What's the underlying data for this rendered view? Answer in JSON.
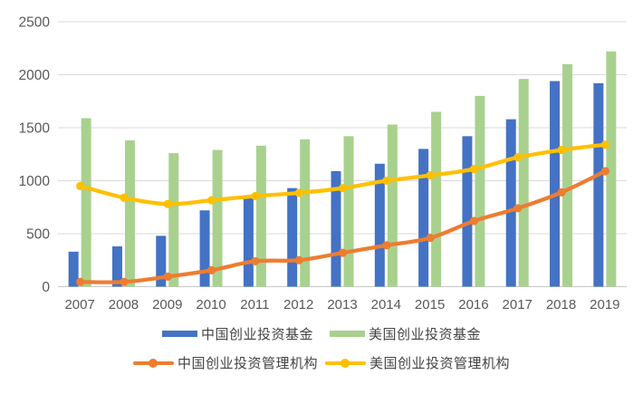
{
  "chart_data": {
    "type": "bar+line",
    "title": "",
    "categories": [
      "2007",
      "2008",
      "2009",
      "2010",
      "2011",
      "2012",
      "2013",
      "2014",
      "2015",
      "2016",
      "2017",
      "2018",
      "2019"
    ],
    "series": [
      {
        "name": "中国创业投资基金",
        "type": "bar",
        "color": "#4472C4",
        "values": [
          330,
          380,
          480,
          720,
          850,
          930,
          1090,
          1160,
          1300,
          1420,
          1580,
          1940,
          1920
        ]
      },
      {
        "name": "美国创业投资基金",
        "type": "bar",
        "color": "#A9D18E",
        "values": [
          1590,
          1380,
          1260,
          1290,
          1330,
          1390,
          1420,
          1530,
          1650,
          1800,
          1960,
          2100,
          2220
        ]
      },
      {
        "name": "中国创业投资管理机构",
        "type": "line",
        "color": "#ED7D31",
        "values": [
          45,
          45,
          95,
          155,
          240,
          250,
          320,
          390,
          460,
          620,
          740,
          890,
          1090
        ]
      },
      {
        "name": "美国创业投资管理机构",
        "type": "line",
        "color": "#FFC000",
        "values": [
          950,
          840,
          780,
          815,
          855,
          885,
          930,
          1000,
          1050,
          1110,
          1220,
          1290,
          1340
        ]
      }
    ],
    "y_axis": {
      "min": 0,
      "max": 2500,
      "step": 500,
      "ticks": [
        0,
        500,
        1000,
        1500,
        2000,
        2500
      ]
    },
    "x_label": "",
    "y_label": "",
    "grid": true,
    "legend_position": "bottom",
    "colors": {
      "grid": "#D9D9D9",
      "axis": "#C8C8C8",
      "tick_text": "#595959",
      "legend_text": "#444444",
      "background": "#FFFFFF"
    }
  }
}
